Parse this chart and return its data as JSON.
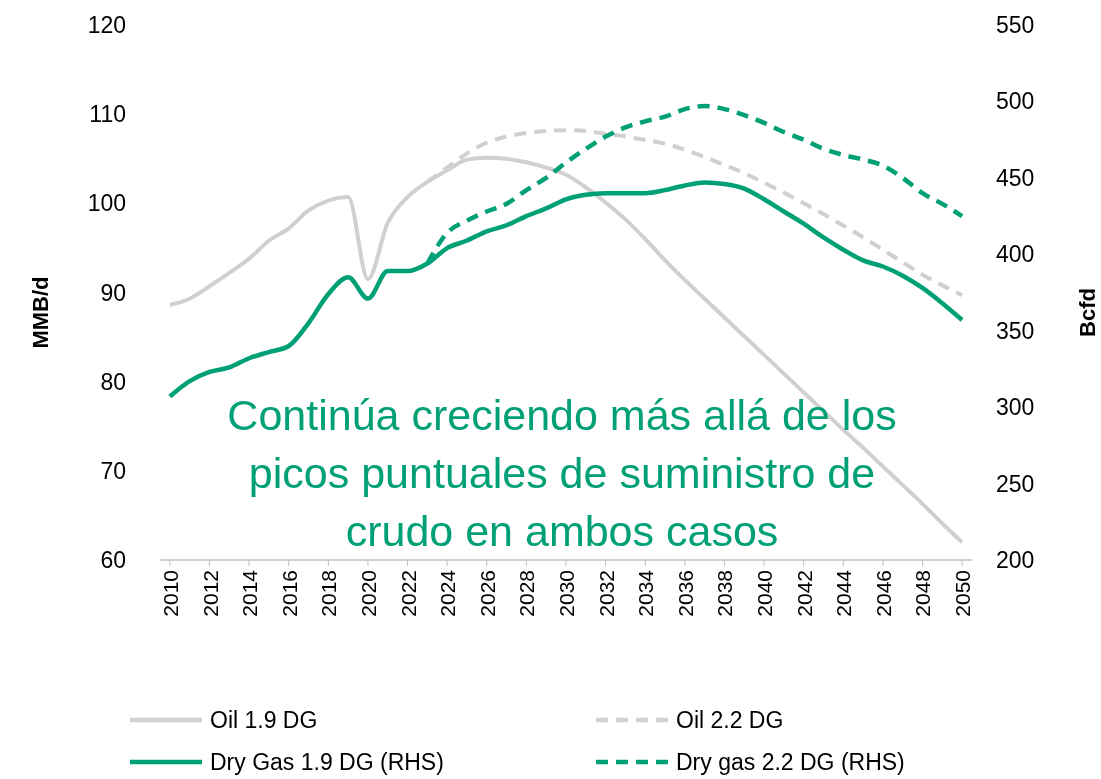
{
  "chart_data": {
    "type": "line",
    "ylabel": "MMB/d",
    "y2label": "Bcfd",
    "x": [
      2010,
      2011,
      2012,
      2013,
      2014,
      2015,
      2016,
      2017,
      2018,
      2019,
      2020,
      2021,
      2022,
      2023,
      2024,
      2025,
      2026,
      2027,
      2028,
      2029,
      2030,
      2031,
      2032,
      2033,
      2034,
      2035,
      2036,
      2037,
      2038,
      2039,
      2040,
      2041,
      2042,
      2043,
      2044,
      2045,
      2046,
      2047,
      2048,
      2049,
      2050
    ],
    "xlim": [
      2009.5,
      2050.5
    ],
    "xticks": [
      2010,
      2012,
      2014,
      2016,
      2018,
      2020,
      2022,
      2024,
      2026,
      2028,
      2030,
      2032,
      2034,
      2036,
      2038,
      2040,
      2042,
      2044,
      2046,
      2048,
      2050
    ],
    "ylim": [
      60,
      120
    ],
    "yticks": [
      60,
      70,
      80,
      90,
      100,
      110,
      120
    ],
    "y2lim": [
      200,
      550
    ],
    "y2ticks": [
      200,
      250,
      300,
      350,
      400,
      450,
      500,
      550
    ],
    "grid": false,
    "legend": "bottom",
    "marker": "none",
    "series": [
      {
        "name": "Oil 1.9 DG",
        "color": "#d0d0d0",
        "line_style": "solid",
        "values": [
          88.6,
          89.3,
          90.7,
          92.2,
          93.8,
          95.8,
          97.2,
          99.2,
          100.3,
          100.7,
          91.5,
          97.8,
          100.7,
          102.4,
          103.7,
          104.9,
          105.1,
          105.0,
          104.6,
          104.0,
          103.2,
          101.8,
          100.1,
          98.2,
          96.0,
          93.6,
          91.4,
          89.3,
          87.2,
          85.1,
          83.0,
          80.9,
          78.8,
          76.7,
          74.6,
          72.6,
          70.5,
          68.4,
          66.3,
          64.1,
          62.0
        ]
      },
      {
        "name": "Oil 2.2 DG",
        "color": "#d0d0d0",
        "line_style": "dashed",
        "values": [
          null,
          null,
          null,
          null,
          null,
          null,
          null,
          null,
          null,
          null,
          null,
          null,
          null,
          102.4,
          104.0,
          105.6,
          106.8,
          107.5,
          107.9,
          108.1,
          108.2,
          108.1,
          107.8,
          107.5,
          107.1,
          106.7,
          106.0,
          105.2,
          104.3,
          103.4,
          102.3,
          101.2,
          100.0,
          98.8,
          97.5,
          96.2,
          94.8,
          93.4,
          92.0,
          90.8,
          89.7
        ]
      },
      {
        "name": "Dry Gas 1.9 DG (RHS)",
        "color": "#00a077",
        "line_style": "solid",
        "axis": "y2",
        "values": [
          307,
          317,
          323,
          326,
          332,
          336,
          340,
          355,
          374,
          385,
          371,
          389,
          389,
          394,
          404,
          409,
          415,
          419,
          425,
          430,
          436,
          439,
          440,
          440,
          440,
          442,
          445,
          447,
          446,
          443,
          436,
          428,
          420,
          411,
          403,
          396,
          392,
          386,
          378,
          368,
          357
        ]
      },
      {
        "name": "Dry gas 2.2 DG (RHS)",
        "color": "#00a077",
        "line_style": "dashed",
        "axis": "y2",
        "values": [
          null,
          null,
          null,
          null,
          null,
          null,
          null,
          null,
          null,
          null,
          null,
          null,
          null,
          394,
          414,
          422,
          428,
          433,
          442,
          450,
          460,
          469,
          477,
          483,
          487,
          490,
          495,
          497,
          495,
          491,
          486,
          480,
          475,
          469,
          465,
          462,
          458,
          450,
          440,
          433,
          425
        ]
      }
    ],
    "annotations": [
      "Continúa creciendo más allá de los\npicos puntuales de suministro de\ncrudo en ambos casos"
    ]
  }
}
